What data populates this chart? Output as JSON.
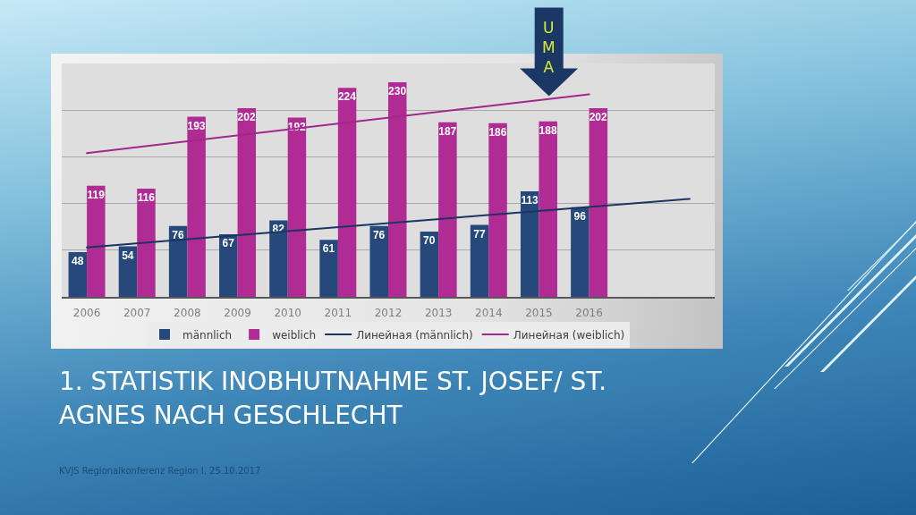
{
  "chart_data": {
    "type": "bar",
    "title": "1. STATISTIK INOBHUTNAHME ST. JOSEF/ ST. AGNES NACH GESCHLECHT",
    "x": [
      2006,
      2007,
      2008,
      2009,
      2010,
      2011,
      2012,
      2013,
      2014,
      2015,
      2016
    ],
    "series": [
      {
        "name": "männlich",
        "color": "#27487a",
        "values": [
          48,
          54,
          76,
          67,
          82,
          61,
          76,
          70,
          77,
          113,
          96
        ],
        "value_labels": [
          "48",
          "54",
          "76",
          "67",
          "82",
          "61",
          "76",
          "70",
          "77",
          "113",
          "96"
        ]
      },
      {
        "name": "weiblich",
        "color": "#b02b93",
        "values": [
          119,
          116,
          193,
          202,
          192,
          224,
          230,
          187,
          186,
          188,
          202
        ],
        "value_labels": [
          "119",
          "116",
          "193",
          "202",
          "192",
          "224",
          "230",
          "187",
          "186",
          "188",
          "202"
        ]
      },
      {
        "name": "Линейная (männlich)",
        "type": "line",
        "color": "#1c3461",
        "x": [
          2006,
          2018
        ],
        "values": [
          53,
          105
        ]
      },
      {
        "name": "Линейная (weiblich)",
        "type": "line",
        "color": "#a0288c",
        "x": [
          2006,
          2016
        ],
        "values": [
          154,
          217
        ]
      }
    ],
    "xlim": [
      2005.5,
      2018.5
    ],
    "xticks": [
      2006,
      2007,
      2008,
      2009,
      2010,
      2011,
      2012,
      2013,
      2014,
      2015,
      2016
    ],
    "ylim": [
      0,
      250
    ],
    "yticks": [
      {
        "value": 0,
        "label": null
      },
      {
        "value": 50,
        "label": null
      },
      {
        "value": 100,
        "label": null
      },
      {
        "value": 150,
        "label": null
      },
      {
        "value": 200,
        "label": null
      }
    ],
    "tick_labels": "x",
    "grid": "y",
    "legend": "bottom",
    "annotations": [
      {
        "text": "UMA",
        "x": 2015.2,
        "y": 215
      },
      "KVJS Regionalkonferenz Region I, 25.10.2017"
    ]
  }
}
